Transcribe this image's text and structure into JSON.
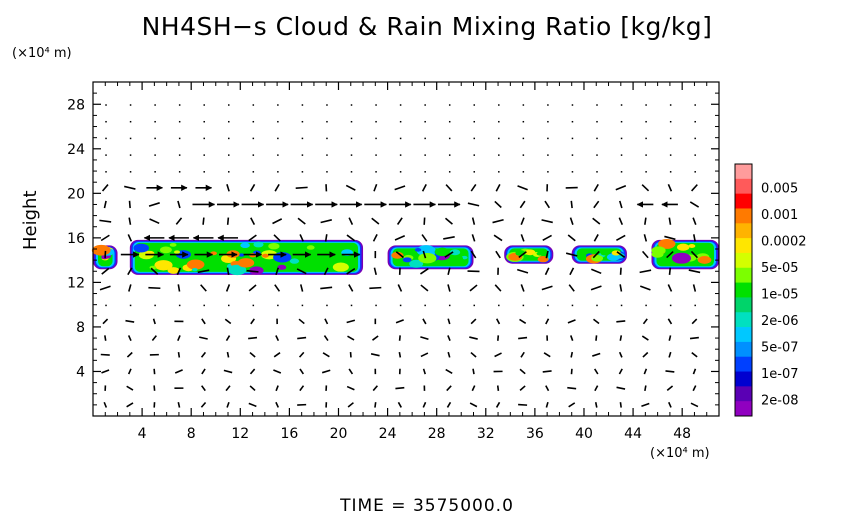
{
  "chart_data": {
    "type": "heatmap",
    "title": "NH4SH−s Cloud & Rain Mixing Ratio [kg/kg]",
    "ylabel": "Height",
    "xunit": "(×10⁴ m)",
    "yunit": "(×10⁴ m)",
    "footer": "TIME  =  3575000.0",
    "xlim": [
      0,
      51
    ],
    "ylim": [
      0,
      30
    ],
    "x_ticks": [
      "4",
      "8",
      "12",
      "16",
      "20",
      "24",
      "28",
      "32",
      "36",
      "40",
      "44",
      "48"
    ],
    "x_tick_values": [
      4,
      8,
      12,
      16,
      20,
      24,
      28,
      32,
      36,
      40,
      44,
      48
    ],
    "y_ticks": [
      "4",
      "8",
      "12",
      "16",
      "20",
      "24",
      "28"
    ],
    "y_tick_values": [
      4,
      8,
      12,
      16,
      20,
      24,
      28
    ],
    "colorbar": {
      "labels": [
        "0.005",
        "0.001",
        "0.0002",
        "5e-05",
        "1e-05",
        "2e-06",
        "5e-07",
        "1e-07",
        "2e-08"
      ],
      "colors": [
        "#ff9c9c",
        "#ff5a5a",
        "#ff0000",
        "#ff7a00",
        "#ffb300",
        "#ffe600",
        "#d4ff00",
        "#7cff00",
        "#00e000",
        "#00d46a",
        "#00e0c0",
        "#00c8ff",
        "#0090ff",
        "#0040ff",
        "#0000d0",
        "#5a00b4",
        "#9000c0"
      ]
    },
    "cloud_regions": [
      {
        "x": [
          0,
          2
        ],
        "y": [
          13,
          15.5
        ]
      },
      {
        "x": [
          3,
          22
        ],
        "y": [
          12.5,
          16
        ]
      },
      {
        "x": [
          24,
          31
        ],
        "y": [
          13,
          15.5
        ]
      },
      {
        "x": [
          33.5,
          37.5
        ],
        "y": [
          13.5,
          15.5
        ]
      },
      {
        "x": [
          39,
          43.5
        ],
        "y": [
          13.5,
          15.5
        ]
      },
      {
        "x": [
          45.5,
          51
        ],
        "y": [
          13,
          16
        ]
      }
    ],
    "wind_vectors": "quiver field of horizontal/vertical velocity; strong eastward jets near y=15-16 and y=19 (x 8-30), westward jet near y=16 (x 3-10)"
  }
}
